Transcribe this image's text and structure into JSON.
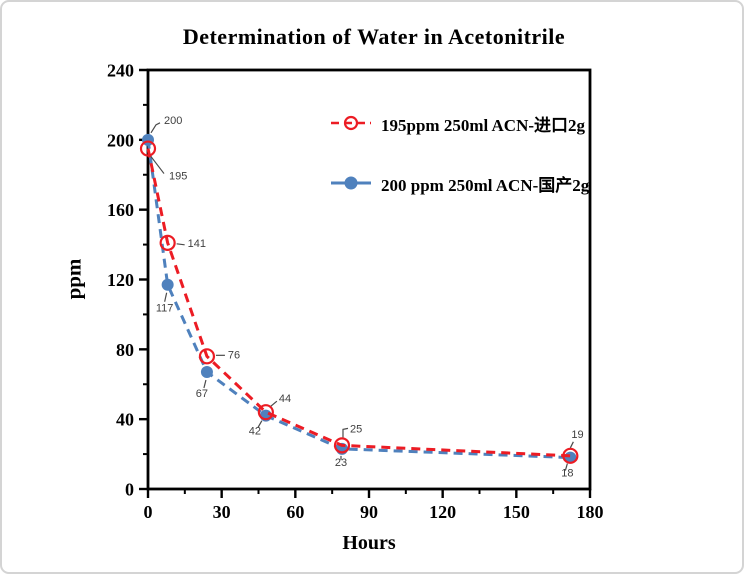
{
  "chart_data": {
    "type": "line",
    "title": "Determination of Water in Acetonitrile",
    "xlabel": "Hours",
    "ylabel": "ppm",
    "xlim": [
      0,
      180
    ],
    "ylim": [
      0,
      240
    ],
    "x_hours": [
      0,
      8,
      24,
      48,
      79,
      172
    ],
    "xticks_major": [
      0,
      30,
      60,
      90,
      120,
      150,
      180
    ],
    "xticks_minor": [
      15,
      45,
      75,
      105,
      135,
      165
    ],
    "yticks_major": [
      0,
      40,
      80,
      120,
      160,
      200,
      240
    ],
    "yticks_minor": [
      20,
      60,
      100,
      140,
      180,
      220
    ],
    "grid": false,
    "legend_position": "inside-top-right",
    "series": [
      {
        "name": "195ppm  250ml ACN-进口2g",
        "color": "#EC1C24",
        "line_style": "dashed",
        "marker": "open-circle",
        "values": [
          195,
          141,
          76,
          44,
          25,
          19
        ]
      },
      {
        "name": "200 ppm 250ml ACN-国产2g",
        "color": "#4F81BD",
        "line_style": "dashed",
        "marker": "filled-circle",
        "values": [
          200,
          117,
          67,
          42,
          23,
          18
        ]
      }
    ],
    "point_label_color": "#3F3F3F",
    "axis_color": "#000000"
  }
}
